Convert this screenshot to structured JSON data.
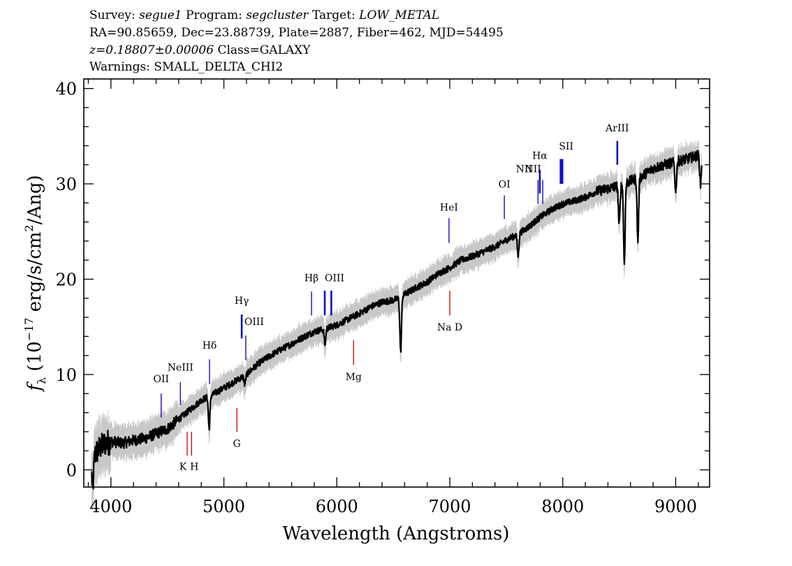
{
  "header": {
    "survey_label": "Survey:",
    "survey": "segue1",
    "program_label": "Program:",
    "program": "segcluster",
    "target_label": "Target:",
    "target": "LOW_METAL",
    "line2": "RA=90.85659, Dec=23.88739, Plate=2887, Fiber=462, MJD=54495",
    "redshift": "z=0.18807±0.00006",
    "class": "Class=GALAXY",
    "warnings": "Warnings: SMALL_DELTA_CHI2"
  },
  "chart_data": {
    "type": "line",
    "title": "",
    "xlabel": "Wavelength (Angstroms)",
    "ylabel": "f_λ (10^-17 erg/s/cm^2/Ang)",
    "xlim": [
      3760,
      9300
    ],
    "ylim": [
      -1.8,
      41
    ],
    "x_ticks": [
      4000,
      5000,
      6000,
      7000,
      8000,
      9000
    ],
    "y_ticks": [
      0,
      10,
      20,
      30,
      40
    ],
    "grid": false,
    "colors": {
      "flux": "#000000",
      "error": "#c8c8c8",
      "emission": "#1010c8",
      "absorption": "#c81010"
    },
    "series": [
      {
        "x": [
          3830,
          3850,
          3900,
          3950,
          4000,
          4100,
          4200,
          4300,
          4400,
          4500,
          4600,
          4700,
          4800,
          4900,
          5000,
          5100,
          5200,
          5300,
          5400,
          5500,
          5600,
          5700,
          5800,
          5900,
          6000,
          6100,
          6200,
          6300,
          6400,
          6500,
          6550,
          6600,
          6700,
          6800,
          6900,
          7000,
          7100,
          7200,
          7300,
          7400,
          7500,
          7600,
          7700,
          7800,
          7900,
          8000,
          8100,
          8200,
          8300,
          8400,
          8500,
          8600,
          8700,
          8800,
          8900,
          9000,
          9100,
          9200,
          9230
        ],
        "y": [
          0.5,
          1.5,
          2.3,
          2.8,
          3.0,
          2.8,
          3.1,
          3.3,
          3.8,
          4.3,
          5.3,
          6.3,
          7.3,
          7.9,
          8.6,
          9.3,
          10.0,
          11.1,
          11.9,
          12.6,
          13.2,
          13.9,
          14.5,
          14.8,
          15.2,
          15.8,
          16.4,
          17.1,
          17.6,
          17.8,
          18.0,
          18.4,
          19.1,
          19.7,
          20.6,
          21.2,
          22.0,
          22.4,
          22.9,
          23.4,
          24.1,
          24.7,
          25.5,
          26.5,
          27.3,
          27.9,
          28.2,
          28.6,
          29.2,
          29.5,
          29.8,
          30.3,
          30.8,
          31.6,
          32.0,
          32.3,
          32.6,
          33.0,
          33.3
        ]
      }
    ],
    "absorption_dips": [
      {
        "x": 3840,
        "y": -2.0
      },
      {
        "x": 4870,
        "y": 4.3
      },
      {
        "x": 5185,
        "y": 9.0
      },
      {
        "x": 5895,
        "y": 13.2
      },
      {
        "x": 6565,
        "y": 12.3
      },
      {
        "x": 7605,
        "y": 22.5
      },
      {
        "x": 8500,
        "y": 25.6
      },
      {
        "x": 8545,
        "y": 21.7
      },
      {
        "x": 8665,
        "y": 24.0
      },
      {
        "x": 9000,
        "y": 29.2
      },
      {
        "x": 9220,
        "y": 30.0
      }
    ],
    "line_labels": [
      {
        "name": "OII",
        "x": 4445,
        "kind": "emission",
        "y1": 5.5,
        "y2": 8.0,
        "label_y": 9.2
      },
      {
        "name": "NeIII",
        "x": 4615,
        "kind": "emission",
        "y1": 6.8,
        "y2": 9.2,
        "label_y": 10.4
      },
      {
        "name": "Hδ",
        "x": 4873,
        "kind": "emission",
        "y1": 9.0,
        "y2": 11.6,
        "label_y": 12.7
      },
      {
        "name": "Hγ",
        "x": 5158,
        "kind": "emission",
        "y1": 13.8,
        "y2": 16.3,
        "label_y": 17.4
      },
      {
        "name": "OIII",
        "x": 5194,
        "kind": "emission",
        "y1": 11.5,
        "y2": 14.1,
        "label_y": 15.2
      },
      {
        "name": "Hβ",
        "x": 5776,
        "kind": "emission",
        "y1": 16.2,
        "y2": 18.7,
        "label_y": 19.8
      },
      {
        "name": "OIII",
        "x": 5893,
        "kind": "emission",
        "y1": 16.2,
        "y2": 18.8,
        "label_y": 19.8
      },
      {
        "name": "",
        "x": 5951,
        "kind": "emission",
        "y1": 16.2,
        "y2": 18.8,
        "label_y": 19.8
      },
      {
        "name": "HeI",
        "x": 6993,
        "kind": "emission",
        "y1": 23.8,
        "y2": 26.4,
        "label_y": 27.2
      },
      {
        "name": "OI",
        "x": 7483,
        "kind": "emission",
        "y1": 26.3,
        "y2": 28.8,
        "label_y": 29.6
      },
      {
        "name": "NII",
        "x": 7781,
        "kind": "emission",
        "y1": 27.9,
        "y2": 30.4,
        "label_y": 31.2
      },
      {
        "name": "Hα",
        "x": 7797,
        "kind": "emission",
        "y1": 29.0,
        "y2": 31.5,
        "label_y": 32.6
      },
      {
        "name": "NII",
        "x": 7823,
        "kind": "emission",
        "y1": 27.9,
        "y2": 30.4,
        "label_y": 31.2
      },
      {
        "name": "SII",
        "x": 7981,
        "kind": "emission",
        "y1": 30.0,
        "y2": 32.6,
        "label_y": 33.6
      },
      {
        "name": "",
        "x": 7997,
        "kind": "emission",
        "y1": 30.0,
        "y2": 32.6,
        "label_y": 33.6
      },
      {
        "name": "ArIII",
        "x": 8483,
        "kind": "emission",
        "y1": 32.0,
        "y2": 34.5,
        "label_y": 35.5
      },
      {
        "name": "K",
        "x": 4675,
        "kind": "absorption",
        "y1": 1.5,
        "y2": 4.0,
        "label_y": -0.0
      },
      {
        "name": "H",
        "x": 4714,
        "kind": "absorption",
        "y1": 1.5,
        "y2": 4.0,
        "label_y": -0.0
      },
      {
        "name": "G",
        "x": 5115,
        "kind": "absorption",
        "y1": 4.0,
        "y2": 6.5,
        "label_y": 2.4
      },
      {
        "name": "Mg",
        "x": 6148,
        "kind": "absorption",
        "y1": 11.0,
        "y2": 13.6,
        "label_y": 9.4
      },
      {
        "name": "Na D",
        "x": 7000,
        "kind": "absorption",
        "y1": 16.2,
        "y2": 18.8,
        "label_y": 14.6
      }
    ]
  }
}
